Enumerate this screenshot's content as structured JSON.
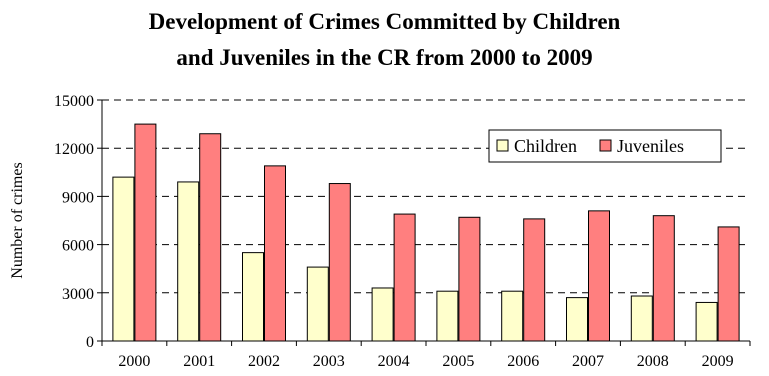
{
  "chart_data": {
    "type": "bar",
    "title_line1": "Development of Crimes Committed by Children",
    "title_line2": "and Juveniles in the CR from 2000 to 2009",
    "xlabel": "",
    "ylabel": "Number of crimes",
    "categories": [
      "2000",
      "2001",
      "2002",
      "2003",
      "2004",
      "2005",
      "2006",
      "2007",
      "2008",
      "2009"
    ],
    "ylim": [
      0,
      15000
    ],
    "yticks": [
      0,
      3000,
      6000,
      9000,
      12000,
      15000
    ],
    "grid": "horizontal dashed",
    "legend_position": "top-right",
    "series": [
      {
        "name": "Children",
        "color": "#FFFFCC",
        "values": [
          10200,
          9900,
          5500,
          4600,
          3300,
          3100,
          3100,
          2700,
          2800,
          2400
        ]
      },
      {
        "name": "Juveniles",
        "color": "#FF7F7F",
        "values": [
          13500,
          12900,
          10900,
          9800,
          7900,
          7700,
          7600,
          8100,
          7800,
          7100
        ]
      }
    ]
  }
}
